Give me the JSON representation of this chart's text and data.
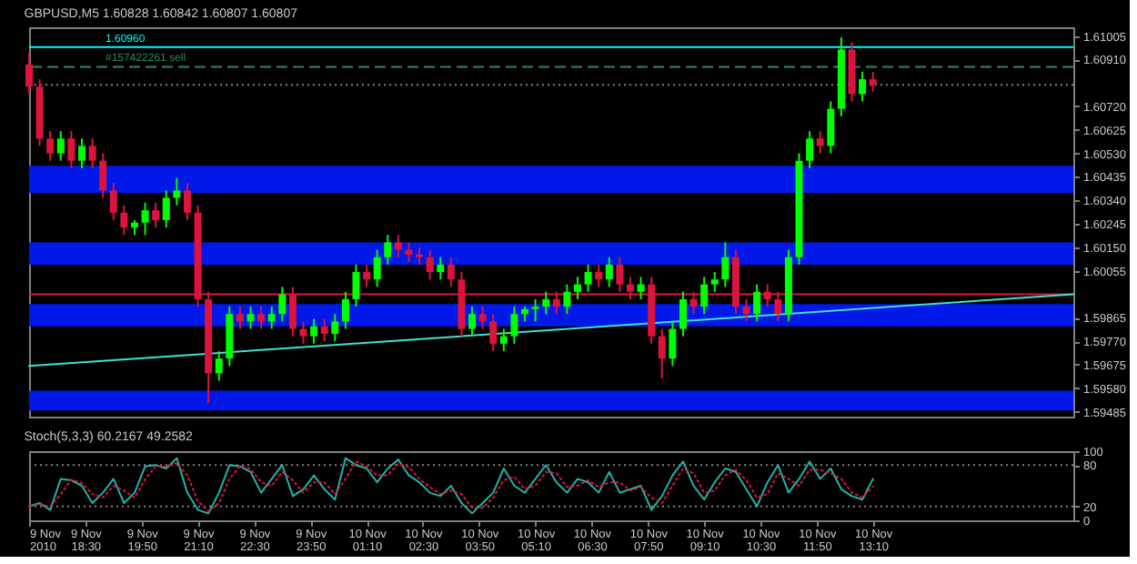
{
  "chart_data": [
    {
      "type": "candlestick",
      "title": "GBPUSD,M5  1.60828 1.60842 1.60807 1.60807",
      "tick_labels": "y",
      "grid": false,
      "xlim": [
        "2010-11-09T17:10",
        "2010-11-10T17:55"
      ],
      "ylim": [
        1.59465,
        1.6104
      ],
      "yticks": [
        1.61005,
        {
          "value": 1.6091,
          "label": "1.60910"
        },
        {
          "value": 1.6072,
          "label": "1.60720"
        },
        1.60625,
        {
          "value": 1.6053,
          "label": "1.60530"
        },
        1.60435,
        {
          "value": 1.6034,
          "label": "1.60340"
        },
        1.60245,
        {
          "value": 1.6015,
          "label": "1.60150"
        },
        1.60055,
        1.59865,
        {
          "value": 1.5977,
          "label": "1.59770"
        },
        1.59675,
        {
          "value": 1.5958,
          "label": "1.59580"
        },
        1.59485
      ],
      "x": [
        "2010-11-09T17:10",
        "2010-11-09T17:25",
        "2010-11-09T17:40",
        "2010-11-09T17:55",
        "2010-11-09T18:10",
        "2010-11-09T18:25",
        "2010-11-09T18:40",
        "2010-11-09T18:55",
        "2010-11-09T19:10",
        "2010-11-09T19:25",
        "2010-11-09T19:40",
        "2010-11-09T19:55",
        "2010-11-09T20:10",
        "2010-11-09T20:25",
        "2010-11-09T20:40",
        "2010-11-09T20:55",
        "2010-11-09T21:10",
        "2010-11-09T21:25",
        "2010-11-09T21:40",
        "2010-11-09T21:55",
        "2010-11-09T22:10",
        "2010-11-09T22:25",
        "2010-11-09T22:40",
        "2010-11-09T22:55",
        "2010-11-09T23:10",
        "2010-11-09T23:25",
        "2010-11-09T23:40",
        "2010-11-09T23:55",
        "2010-11-10T00:10",
        "2010-11-10T00:25",
        "2010-11-10T00:40",
        "2010-11-10T00:55",
        "2010-11-10T01:10",
        "2010-11-10T01:25",
        "2010-11-10T01:40",
        "2010-11-10T01:55",
        "2010-11-10T02:10",
        "2010-11-10T02:25",
        "2010-11-10T02:40",
        "2010-11-10T02:55",
        "2010-11-10T03:10",
        "2010-11-10T03:25",
        "2010-11-10T03:40",
        "2010-11-10T03:55",
        "2010-11-10T04:10",
        "2010-11-10T04:25",
        "2010-11-10T04:40",
        "2010-11-10T04:55",
        "2010-11-10T05:10",
        "2010-11-10T05:25",
        "2010-11-10T05:40",
        "2010-11-10T05:55",
        "2010-11-10T06:10",
        "2010-11-10T06:25",
        "2010-11-10T06:40",
        "2010-11-10T06:55",
        "2010-11-10T07:10",
        "2010-11-10T07:25",
        "2010-11-10T07:40",
        "2010-11-10T07:55",
        "2010-11-10T08:10",
        "2010-11-10T08:25",
        "2010-11-10T08:40",
        "2010-11-10T08:55",
        "2010-11-10T09:10",
        "2010-11-10T09:25",
        "2010-11-10T09:40",
        "2010-11-10T09:55",
        "2010-11-10T10:10",
        "2010-11-10T10:25",
        "2010-11-10T10:40",
        "2010-11-10T10:55",
        "2010-11-10T11:10",
        "2010-11-10T11:25",
        "2010-11-10T11:40",
        "2010-11-10T11:55",
        "2010-11-10T12:10",
        "2010-11-10T12:25",
        "2010-11-10T12:40",
        "2010-11-10T12:55",
        "2010-11-10T13:10"
      ],
      "ohlc": [
        [
          1.6089,
          1.6094,
          1.6077,
          1.608
        ],
        [
          1.608,
          1.6083,
          1.6056,
          1.6059
        ],
        [
          1.6059,
          1.6062,
          1.605,
          1.6053
        ],
        [
          1.6053,
          1.6062,
          1.605,
          1.6059
        ],
        [
          1.6059,
          1.6062,
          1.6047,
          1.605
        ],
        [
          1.605,
          1.6059,
          1.6047,
          1.6056
        ],
        [
          1.6056,
          1.6059,
          1.6047,
          1.605
        ],
        [
          1.605,
          1.6053,
          1.6035,
          1.6038
        ],
        [
          1.6038,
          1.6041,
          1.6026,
          1.6029
        ],
        [
          1.6029,
          1.6032,
          1.602,
          1.6023
        ],
        [
          1.6023,
          1.6026,
          1.602,
          1.6025
        ],
        [
          1.6025,
          1.6033,
          1.602,
          1.603
        ],
        [
          1.603,
          1.6033,
          1.6023,
          1.6026
        ],
        [
          1.6026,
          1.6038,
          1.6023,
          1.6035
        ],
        [
          1.6035,
          1.6043,
          1.6032,
          1.6038
        ],
        [
          1.6038,
          1.6041,
          1.6026,
          1.6029
        ],
        [
          1.6029,
          1.6032,
          1.5991,
          1.5994
        ],
        [
          1.5994,
          1.5997,
          1.5952,
          1.5964
        ],
        [
          1.5964,
          1.5973,
          1.5961,
          1.597
        ],
        [
          1.597,
          1.5991,
          1.5967,
          1.5988
        ],
        [
          1.5988,
          1.5991,
          1.5982,
          1.5985
        ],
        [
          1.5985,
          1.5991,
          1.5982,
          1.5988
        ],
        [
          1.5988,
          1.5991,
          1.5982,
          1.5985
        ],
        [
          1.5985,
          1.5991,
          1.5982,
          1.5988
        ],
        [
          1.5988,
          1.5999,
          1.5985,
          1.5996
        ],
        [
          1.5996,
          1.5999,
          1.5979,
          1.5982
        ],
        [
          1.5982,
          1.5985,
          1.5976,
          1.5979
        ],
        [
          1.5979,
          1.5986,
          1.5976,
          1.5983
        ],
        [
          1.5983,
          1.5986,
          1.5977,
          1.598
        ],
        [
          1.598,
          1.5988,
          1.5977,
          1.5985
        ],
        [
          1.5985,
          1.5997,
          1.5982,
          1.5994
        ],
        [
          1.5994,
          1.6008,
          1.5991,
          1.6005
        ],
        [
          1.6005,
          1.6008,
          1.5999,
          1.6002
        ],
        [
          1.6002,
          1.6014,
          1.5999,
          1.6011
        ],
        [
          1.6011,
          1.602,
          1.6008,
          1.6017
        ],
        [
          1.6017,
          1.602,
          1.6011,
          1.6014
        ],
        [
          1.6014,
          1.6017,
          1.6009,
          1.6012
        ],
        [
          1.6012,
          1.6015,
          1.6008,
          1.6011
        ],
        [
          1.6011,
          1.6014,
          1.6002,
          1.6005
        ],
        [
          1.6005,
          1.6011,
          1.6002,
          1.6008
        ],
        [
          1.6008,
          1.6011,
          1.5999,
          1.6002
        ],
        [
          1.6002,
          1.6005,
          1.5979,
          1.5982
        ],
        [
          1.5982,
          1.5991,
          1.5979,
          1.5988
        ],
        [
          1.5988,
          1.5991,
          1.5982,
          1.5985
        ],
        [
          1.5985,
          1.5988,
          1.5973,
          1.5976
        ],
        [
          1.5976,
          1.5982,
          1.5973,
          1.5979
        ],
        [
          1.5979,
          1.5991,
          1.5976,
          1.5988
        ],
        [
          1.5988,
          1.5991,
          1.5985,
          1.599
        ],
        [
          1.599,
          1.5994,
          1.5985,
          1.5991
        ],
        [
          1.5991,
          1.5997,
          1.5988,
          1.5994
        ],
        [
          1.5994,
          1.5997,
          1.5988,
          1.5991
        ],
        [
          1.5991,
          1.6,
          1.5988,
          1.5997
        ],
        [
          1.5997,
          1.6003,
          1.5994,
          1.6
        ],
        [
          1.6,
          1.6008,
          1.5997,
          1.6005
        ],
        [
          1.6005,
          1.6008,
          1.5999,
          1.6002
        ],
        [
          1.6002,
          1.6011,
          1.5999,
          1.6008
        ],
        [
          1.6008,
          1.6011,
          1.5997,
          1.6
        ],
        [
          1.6,
          1.6003,
          1.5994,
          1.5997
        ],
        [
          1.5997,
          1.6003,
          1.5994,
          1.6
        ],
        [
          1.6,
          1.6003,
          1.5976,
          1.5979
        ],
        [
          1.5979,
          1.5982,
          1.5962,
          1.597
        ],
        [
          1.597,
          1.5985,
          1.5967,
          1.5982
        ],
        [
          1.5982,
          1.5997,
          1.5979,
          1.5994
        ],
        [
          1.5994,
          1.5997,
          1.5988,
          1.5991
        ],
        [
          1.5991,
          1.6003,
          1.5988,
          1.6
        ],
        [
          1.6,
          1.6005,
          1.5997,
          1.6002
        ],
        [
          1.6002,
          1.6017,
          1.5999,
          1.6011
        ],
        [
          1.6011,
          1.6014,
          1.5988,
          1.5991
        ],
        [
          1.5991,
          1.5994,
          1.5985,
          1.5988
        ],
        [
          1.5988,
          1.6,
          1.5985,
          1.5997
        ],
        [
          1.5997,
          1.6,
          1.5991,
          1.5994
        ],
        [
          1.5994,
          1.5997,
          1.5985,
          1.5988
        ],
        [
          1.5988,
          1.6014,
          1.5985,
          1.6011
        ],
        [
          1.6011,
          1.6053,
          1.6008,
          1.605
        ],
        [
          1.605,
          1.6062,
          1.6047,
          1.6059
        ],
        [
          1.6059,
          1.6062,
          1.6053,
          1.6056
        ],
        [
          1.6056,
          1.6074,
          1.6053,
          1.6071
        ],
        [
          1.6071,
          1.61,
          1.6068,
          1.6095
        ],
        [
          1.6095,
          1.6098,
          1.6074,
          1.6077
        ],
        [
          1.6077,
          1.6086,
          1.6074,
          1.6083
        ],
        [
          1.6083,
          1.6086,
          1.6078,
          1.60807
        ]
      ],
      "colors": [
        "#dc143c",
        "#dc143c",
        "#dc143c",
        "#00ff00",
        "#dc143c",
        "#00ff00",
        "#dc143c",
        "#dc143c",
        "#dc143c",
        "#dc143c",
        "#00ff00",
        "#00ff00",
        "#dc143c",
        "#00ff00",
        "#00ff00",
        "#dc143c",
        "#dc143c",
        "#dc143c",
        "#00ff00",
        "#00ff00",
        "#dc143c",
        "#00ff00",
        "#dc143c",
        "#00ff00",
        "#00ff00",
        "#dc143c",
        "#dc143c",
        "#00ff00",
        "#dc143c",
        "#00ff00",
        "#00ff00",
        "#00ff00",
        "#dc143c",
        "#00ff00",
        "#00ff00",
        "#dc143c",
        "#dc143c",
        "#dc143c",
        "#dc143c",
        "#00ff00",
        "#dc143c",
        "#dc143c",
        "#00ff00",
        "#dc143c",
        "#dc143c",
        "#00ff00",
        "#00ff00",
        "#00ff00",
        "#00ff00",
        "#00ff00",
        "#dc143c",
        "#00ff00",
        "#00ff00",
        "#00ff00",
        "#dc143c",
        "#00ff00",
        "#dc143c",
        "#dc143c",
        "#00ff00",
        "#dc143c",
        "#dc143c",
        "#00ff00",
        "#00ff00",
        "#dc143c",
        "#00ff00",
        "#00ff00",
        "#00ff00",
        "#dc143c",
        "#dc143c",
        "#00ff00",
        "#dc143c",
        "#dc143c",
        "#00ff00",
        "#00ff00",
        "#00ff00",
        "#dc143c",
        "#00ff00",
        "#00ff00",
        "#dc143c",
        "#00ff00",
        "#dc143c"
      ],
      "series": [
        {
          "type": "line",
          "color": "#40e0d0",
          "x": [
            "2010-11-09T17:10",
            "2010-11-10T17:55"
          ],
          "values": [
            1.5967,
            1.5996
          ]
        }
      ],
      "bands": [
        {
          "axis": "y",
          "from": 1.6037,
          "to": 1.6048,
          "color": "#0018e8"
        },
        {
          "axis": "y",
          "from": 1.6008,
          "to": 1.6017,
          "color": "#0018e8"
        },
        {
          "axis": "y",
          "from": 1.5983,
          "to": 1.5992,
          "color": "#0018e8"
        },
        {
          "axis": "y",
          "from": 1.5949,
          "to": 1.5957,
          "color": "#0018e8"
        }
      ],
      "ref_lines": [
        {
          "axis": "y",
          "value": 1.6096,
          "label": "1.60960",
          "color": "#00ffff",
          "line_style": "solid"
        },
        {
          "axis": "y",
          "value": 1.6088,
          "label": "#157422261 sell",
          "color": "#2e8b57",
          "line_style": "dashed"
        },
        {
          "axis": "y",
          "value": 1.60807,
          "color": "#808080",
          "line_style": "dotted"
        },
        {
          "axis": "y",
          "value": 1.5996,
          "color": "#dc143c",
          "line_style": "solid"
        }
      ]
    },
    {
      "type": "line",
      "title": "Stoch(5,3,3) 60.2167 49.2582",
      "grid": false,
      "xlim": [
        "2010-11-09T17:10",
        "2010-11-10T17:55"
      ],
      "xticks": [
        {
          "value": "2010-11-09T17:10",
          "label": "9 Nov 2010"
        },
        {
          "value": "2010-11-09T18:30",
          "label": "9 Nov 18:30"
        },
        {
          "value": "2010-11-09T19:50",
          "label": "9 Nov 19:50"
        },
        {
          "value": "2010-11-09T21:10",
          "label": "9 Nov 21:10"
        },
        {
          "value": "2010-11-09T22:30",
          "label": "9 Nov 22:30"
        },
        {
          "value": "2010-11-09T23:50",
          "label": "9 Nov 23:50"
        },
        {
          "value": "2010-11-10T01:10",
          "label": "10 Nov 01:10"
        },
        {
          "value": "2010-11-10T02:30",
          "label": "10 Nov 02:30"
        },
        {
          "value": "2010-11-10T03:50",
          "label": "10 Nov 03:50"
        },
        {
          "value": "2010-11-10T05:10",
          "label": "10 Nov 05:10"
        },
        {
          "value": "2010-11-10T06:30",
          "label": "10 Nov 06:30"
        },
        {
          "value": "2010-11-10T07:50",
          "label": "10 Nov 07:50"
        },
        {
          "value": "2010-11-10T09:10",
          "label": "10 Nov 09:10"
        },
        {
          "value": "2010-11-10T10:30",
          "label": "10 Nov 10:30"
        },
        {
          "value": "2010-11-10T11:50",
          "label": "10 Nov 11:50"
        },
        {
          "value": "2010-11-10T13:10",
          "label": "10 Nov 13:10"
        }
      ],
      "ylim": [
        0,
        100
      ],
      "yticks": [
        0,
        20,
        80,
        100
      ],
      "x": [
        "2010-11-09T17:10",
        "2010-11-09T17:25",
        "2010-11-09T17:40",
        "2010-11-09T17:55",
        "2010-11-09T18:10",
        "2010-11-09T18:25",
        "2010-11-09T18:40",
        "2010-11-09T18:55",
        "2010-11-09T19:10",
        "2010-11-09T19:25",
        "2010-11-09T19:40",
        "2010-11-09T19:55",
        "2010-11-09T20:10",
        "2010-11-09T20:25",
        "2010-11-09T20:40",
        "2010-11-09T20:55",
        "2010-11-09T21:10",
        "2010-11-09T21:25",
        "2010-11-09T21:40",
        "2010-11-09T21:55",
        "2010-11-09T22:10",
        "2010-11-09T22:25",
        "2010-11-09T22:40",
        "2010-11-09T22:55",
        "2010-11-09T23:10",
        "2010-11-09T23:25",
        "2010-11-09T23:40",
        "2010-11-09T23:55",
        "2010-11-10T00:10",
        "2010-11-10T00:25",
        "2010-11-10T00:40",
        "2010-11-10T00:55",
        "2010-11-10T01:10",
        "2010-11-10T01:25",
        "2010-11-10T01:40",
        "2010-11-10T01:55",
        "2010-11-10T02:10",
        "2010-11-10T02:25",
        "2010-11-10T02:40",
        "2010-11-10T02:55",
        "2010-11-10T03:10",
        "2010-11-10T03:25",
        "2010-11-10T03:40",
        "2010-11-10T03:55",
        "2010-11-10T04:10",
        "2010-11-10T04:25",
        "2010-11-10T04:40",
        "2010-11-10T04:55",
        "2010-11-10T05:10",
        "2010-11-10T05:25",
        "2010-11-10T05:40",
        "2010-11-10T05:55",
        "2010-11-10T06:10",
        "2010-11-10T06:25",
        "2010-11-10T06:40",
        "2010-11-10T06:55",
        "2010-11-10T07:10",
        "2010-11-10T07:25",
        "2010-11-10T07:40",
        "2010-11-10T07:55",
        "2010-11-10T08:10",
        "2010-11-10T08:25",
        "2010-11-10T08:40",
        "2010-11-10T08:55",
        "2010-11-10T09:10",
        "2010-11-10T09:25",
        "2010-11-10T09:40",
        "2010-11-10T09:55",
        "2010-11-10T10:10",
        "2010-11-10T10:25",
        "2010-11-10T10:40",
        "2010-11-10T10:55",
        "2010-11-10T11:10",
        "2010-11-10T11:25",
        "2010-11-10T11:40",
        "2010-11-10T11:55",
        "2010-11-10T12:10",
        "2010-11-10T12:25",
        "2010-11-10T12:40",
        "2010-11-10T12:55",
        "2010-11-10T13:10"
      ],
      "series": [
        {
          "color": "#20b2aa",
          "line_style": "solid",
          "values": [
            20,
            25,
            15,
            60,
            58,
            50,
            25,
            40,
            60,
            25,
            40,
            78,
            80,
            75,
            90,
            40,
            15,
            10,
            40,
            80,
            78,
            70,
            40,
            60,
            80,
            35,
            45,
            65,
            45,
            30,
            90,
            80,
            75,
            55,
            75,
            88,
            65,
            55,
            40,
            35,
            50,
            25,
            10,
            25,
            40,
            75,
            50,
            40,
            60,
            80,
            55,
            40,
            60,
            55,
            40,
            70,
            40,
            45,
            50,
            15,
            35,
            65,
            85,
            50,
            30,
            55,
            75,
            70,
            45,
            20,
            55,
            80,
            40,
            60,
            85,
            60,
            75,
            45,
            35,
            30,
            60
          ]
        },
        {
          "color": "#dc143c",
          "line_style": "dotted",
          "values": [
            20,
            23,
            20,
            38,
            59,
            54,
            38,
            33,
            50,
            43,
            33,
            59,
            79,
            78,
            83,
            65,
            28,
            13,
            25,
            60,
            79,
            74,
            55,
            50,
            70,
            58,
            40,
            55,
            55,
            38,
            60,
            85,
            78,
            65,
            65,
            82,
            77,
            60,
            48,
            38,
            43,
            38,
            18,
            18,
            33,
            58,
            63,
            45,
            50,
            70,
            68,
            48,
            50,
            58,
            48,
            55,
            55,
            43,
            48,
            33,
            25,
            50,
            75,
            68,
            40,
            43,
            65,
            73,
            58,
            33,
            38,
            68,
            60,
            50,
            73,
            73,
            68,
            60,
            40,
            33,
            49
          ]
        }
      ],
      "ref_lines": [
        {
          "axis": "y",
          "value": 80,
          "color": "#808080",
          "line_style": "dotted"
        },
        {
          "axis": "y",
          "value": 20,
          "color": "#808080",
          "line_style": "dotted"
        }
      ]
    }
  ]
}
